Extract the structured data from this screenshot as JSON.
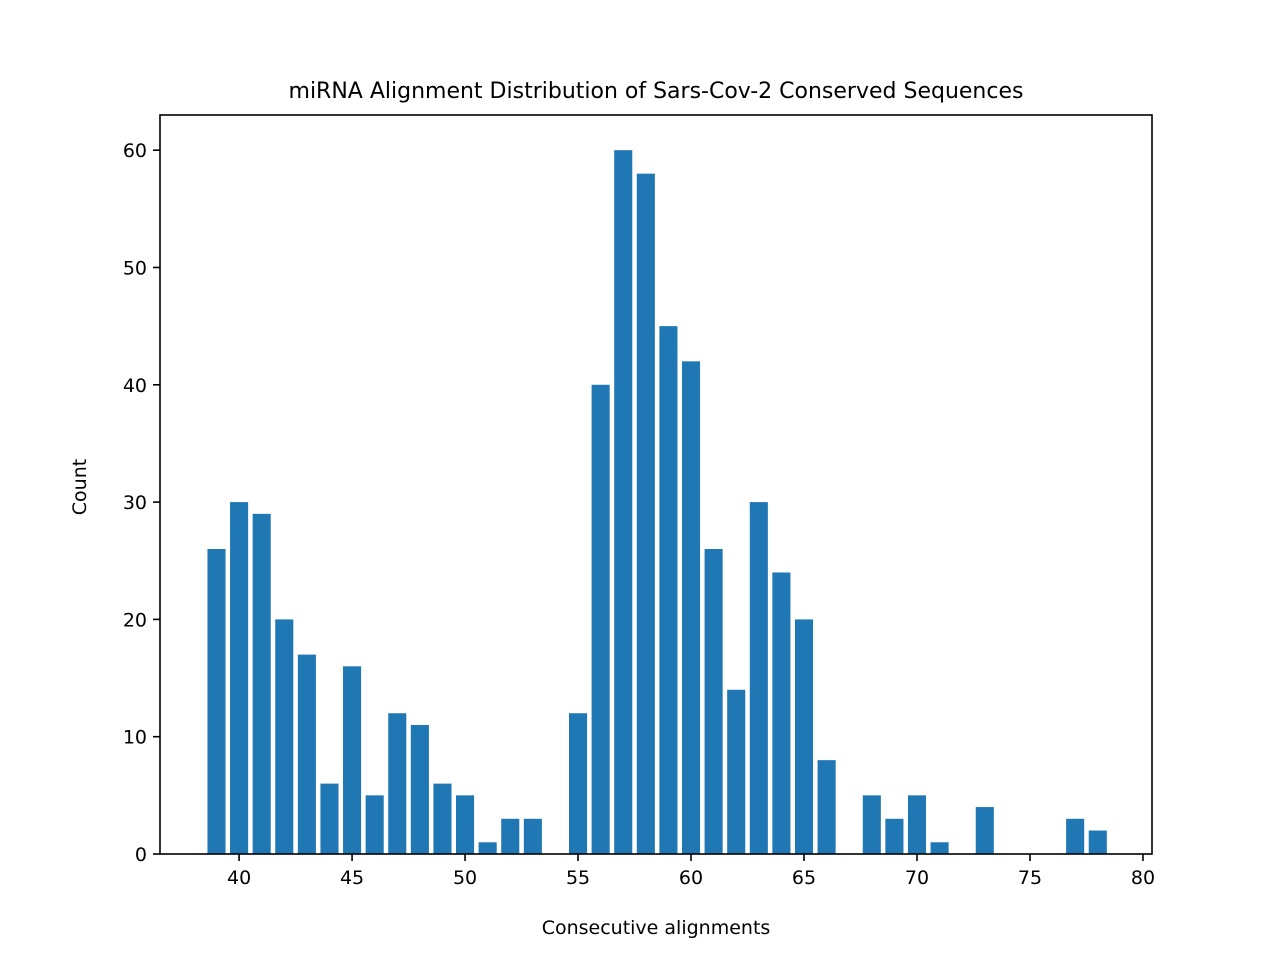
{
  "chart_data": {
    "type": "bar",
    "title": "miRNA Alignment Distribution of Sars-Cov-2 Conserved Sequences",
    "xlabel": "Consecutive alignments",
    "ylabel": "Count",
    "xlim": [
      36.5,
      80.4
    ],
    "ylim": [
      0,
      63
    ],
    "xticks": [
      40,
      45,
      50,
      55,
      60,
      65,
      70,
      75,
      80
    ],
    "yticks": [
      0,
      10,
      20,
      30,
      40,
      50,
      60
    ],
    "bar_width": 0.8,
    "color": "#1f77b4",
    "grid": false,
    "x": [
      39,
      40,
      41,
      42,
      43,
      44,
      45,
      46,
      47,
      48,
      49,
      50,
      51,
      52,
      53,
      55,
      56,
      57,
      58,
      59,
      60,
      61,
      62,
      63,
      64,
      65,
      66,
      68,
      69,
      70,
      71,
      73,
      77,
      78
    ],
    "values": [
      26,
      30,
      29,
      20,
      17,
      6,
      16,
      5,
      12,
      11,
      6,
      5,
      1,
      3,
      3,
      12,
      40,
      60,
      58,
      45,
      42,
      26,
      14,
      30,
      24,
      20,
      8,
      5,
      3,
      5,
      1,
      4,
      3,
      2
    ]
  }
}
